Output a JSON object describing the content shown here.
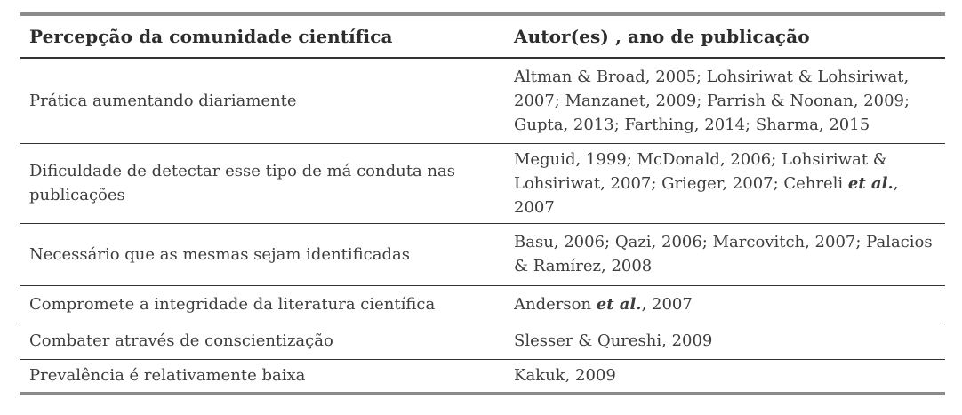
{
  "colors": {
    "outer_rule": "#8b8b8e",
    "inner_rule": "#323232",
    "text": "#3d3d3d",
    "header_text": "#2d2d2d",
    "background": "#ffffff"
  },
  "table": {
    "columns": [
      {
        "label": "Percepção da comunidade científica"
      },
      {
        "label": "Autor(es) , ano de publicação"
      }
    ],
    "rows": [
      {
        "perception": "Prática aumentando diariamente",
        "authors": [
          {
            "t": "Altman & Broad, 2005; Lohsiriwat & Lohsiriwat, 2007; Manzanet, 2009; Parrish & Noonan, 2009; Gupta, 2013; Farthing, 2014; Sharma, 2015"
          }
        ]
      },
      {
        "perception": "Dificuldade de detectar esse tipo de má conduta nas publi­cações",
        "authors": [
          {
            "t": "Meguid, 1999; McDonald, 2006; Lohsiriwat & Lohsi­riwat, 2007; Grieger, 2007; Cehreli "
          },
          {
            "t": "et al.",
            "em": true
          },
          {
            "t": ", 2007"
          }
        ]
      },
      {
        "perception": "Necessário que as mesmas sejam identificadas",
        "authors": [
          {
            "t": "Basu, 2006; Qazi, 2006; Marcovitch, 2007; Palacios & Ramírez, 2008"
          }
        ]
      },
      {
        "perception": "Compromete a integridade da literatura científica",
        "authors": [
          {
            "t": "Anderson "
          },
          {
            "t": "et al.",
            "em": true
          },
          {
            "t": ", 2007"
          }
        ]
      },
      {
        "perception": "Combater através de conscientização",
        "authors": [
          {
            "t": "Slesser & Qureshi, 2009"
          }
        ]
      },
      {
        "perception": "Prevalência é relativamente baixa",
        "authors": [
          {
            "t": "Kakuk, 2009"
          }
        ]
      }
    ]
  }
}
